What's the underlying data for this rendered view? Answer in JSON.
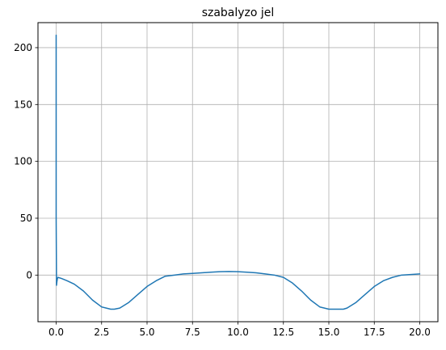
{
  "chart_data": {
    "type": "line",
    "title": "szabalyzo jel",
    "xlabel": "",
    "ylabel": "",
    "xlim": [
      -1.0,
      21.0
    ],
    "ylim": [
      -41.0,
      222.0
    ],
    "grid": true,
    "xticks": [
      0.0,
      2.5,
      5.0,
      7.5,
      10.0,
      12.5,
      15.0,
      17.5,
      20.0
    ],
    "xtick_labels": [
      "0.0",
      "2.5",
      "5.0",
      "7.5",
      "10.0",
      "12.5",
      "15.0",
      "17.5",
      "20.0"
    ],
    "yticks": [
      0,
      50,
      100,
      150,
      200
    ],
    "ytick_labels": [
      "0",
      "50",
      "100",
      "150",
      "200"
    ],
    "colors": {
      "line": "#1f77b4",
      "grid": "#b0b0b0",
      "axes": "#000000"
    },
    "series": [
      {
        "x": [
          0.0,
          0.0,
          0.02,
          0.04,
          0.07,
          0.1,
          0.3,
          0.6,
          1.0,
          1.5,
          2.0,
          2.5,
          3.0,
          3.2,
          3.5,
          4.0,
          4.5,
          5.0,
          5.5,
          6.0,
          6.5,
          7.0,
          7.5,
          8.0,
          8.5,
          9.0,
          9.5,
          10.0,
          10.5,
          11.0,
          11.5,
          12.0,
          12.5,
          13.0,
          13.5,
          14.0,
          14.5,
          15.0,
          15.5,
          15.8,
          16.0,
          16.5,
          17.0,
          17.5,
          18.0,
          18.5,
          19.0,
          19.5,
          20.0
        ],
        "y": [
          211,
          50,
          -9,
          -6,
          -3,
          -2,
          -3,
          -5,
          -8,
          -14,
          -22,
          -28,
          -30,
          -30,
          -29,
          -24,
          -17,
          -10,
          -5,
          -1,
          0,
          1,
          1.5,
          2,
          2.5,
          3,
          3.2,
          3,
          2.5,
          2,
          1,
          0,
          -2,
          -7,
          -14,
          -22,
          -28,
          -30,
          -30,
          -30,
          -29,
          -24,
          -17,
          -10,
          -5,
          -2,
          0,
          0.5,
          1
        ]
      }
    ]
  }
}
